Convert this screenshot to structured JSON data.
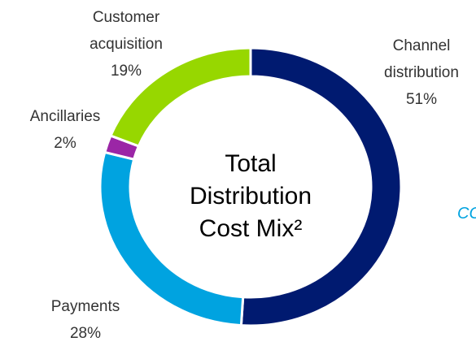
{
  "chart_data": {
    "type": "donut",
    "title": "Total Distribution Cost Mix²",
    "categories": [
      "Channel distribution",
      "Payments",
      "Ancillaries",
      "Customer acquisition"
    ],
    "values": [
      51,
      28,
      2,
      19
    ],
    "value_labels": [
      "51%",
      "28%",
      "2%",
      "19%"
    ],
    "colors": [
      "#001a70",
      "#00a3e0",
      "#9b26a6",
      "#97d700"
    ],
    "side_text": "CO"
  }
}
